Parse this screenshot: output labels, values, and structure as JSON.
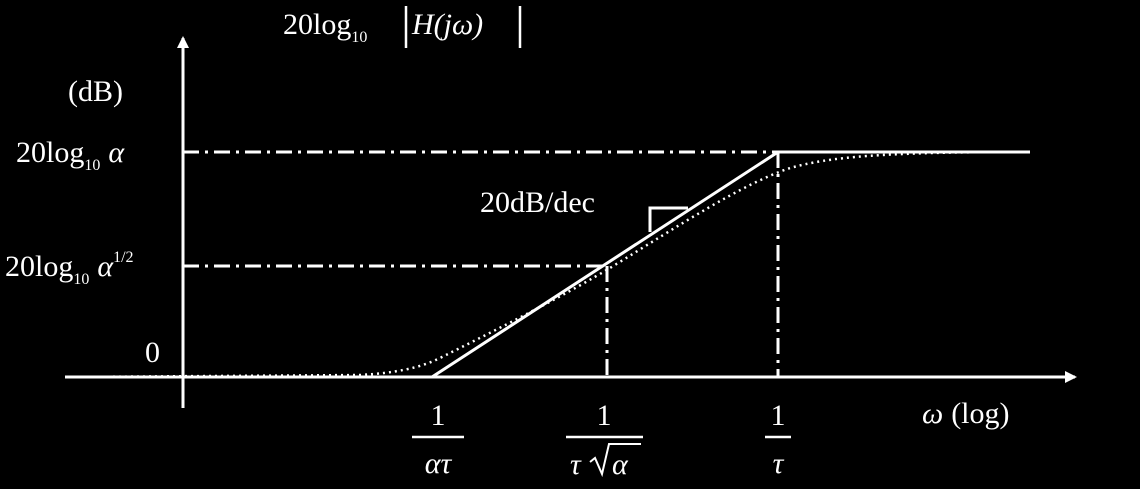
{
  "diagram": {
    "y_axis": {
      "title": "20log",
      "title_sub": "10",
      "title_expr": "H(jω)",
      "unit": "(dB)"
    },
    "x_axis": {
      "label_symbol": "ω",
      "label_scale": "(log)"
    },
    "y_levels": [
      {
        "id": "alpha",
        "prefix": "20log",
        "sub": "10",
        "sym": "α",
        "sup": ""
      },
      {
        "id": "sqrt-alpha",
        "prefix": "20log",
        "sub": "10",
        "sym": "α",
        "sup": "1/2"
      },
      {
        "id": "zero",
        "prefix": "0",
        "sub": "",
        "sym": "",
        "sup": ""
      }
    ],
    "x_marks": [
      {
        "id": "one-over-alpha-tau",
        "numerator": "1",
        "denominator": "ατ"
      },
      {
        "id": "one-over-tau-sqrt-alpha",
        "numerator": "1",
        "denominator_tau": "τ",
        "denominator_radicand": "α"
      },
      {
        "id": "one-over-tau",
        "numerator": "1",
        "denominator": "τ"
      }
    ],
    "slope_label": "20dB/dec",
    "colors": {
      "background": "#000000",
      "foreground": "#ffffff"
    }
  }
}
